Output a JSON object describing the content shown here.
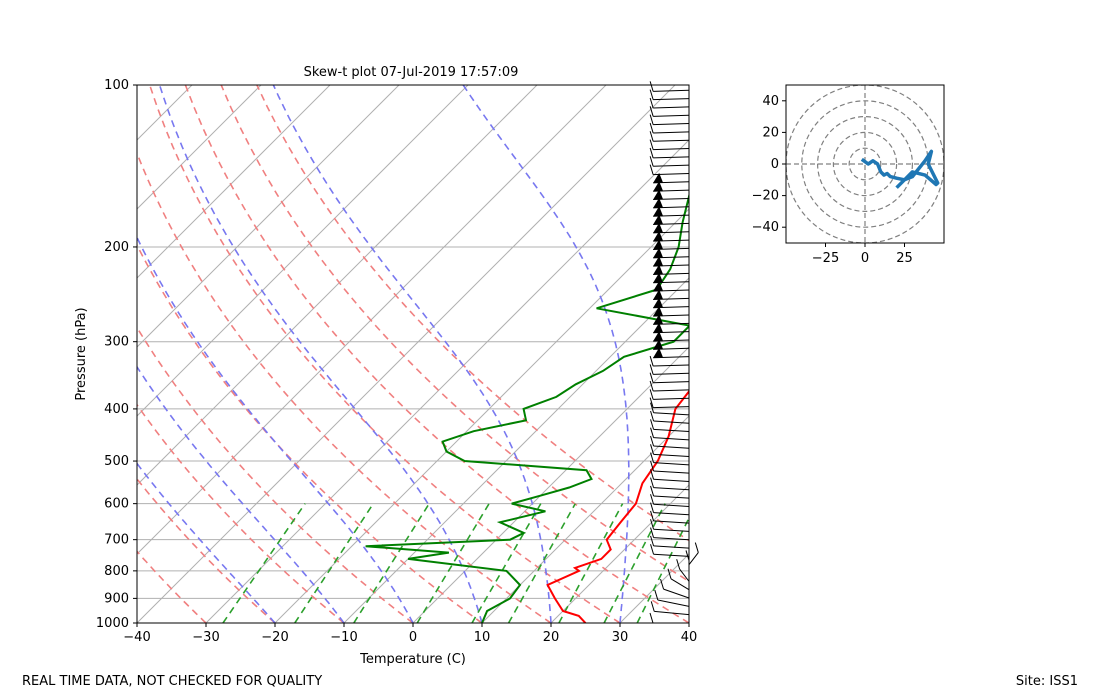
{
  "chart_data": [
    {
      "type": "skew-t",
      "title": "Skew-t plot 07-Jul-2019 17:57:09",
      "xlabel": "Temperature (C)",
      "ylabel": "Pressure (hPa)",
      "xlim": [
        -40,
        40
      ],
      "ylim": [
        1000,
        100
      ],
      "log_y": true,
      "grid": true,
      "x_ticks": [
        "−40",
        "−30",
        "−20",
        "−10",
        "0",
        "10",
        "20",
        "30",
        "40"
      ],
      "y_ticks": [
        "1000",
        "900",
        "800",
        "700",
        "600",
        "500",
        "400",
        "300",
        "200",
        "100"
      ],
      "series": [
        {
          "color": "#ff0000",
          "p": [
            1000,
            970,
            950,
            900,
            850,
            800,
            790,
            760,
            730,
            700,
            650,
            600,
            550,
            500,
            450,
            400,
            350,
            300,
            250,
            220,
            200,
            180,
            170,
            160,
            150,
            140,
            130,
            120,
            110,
            100
          ],
          "t": [
            25,
            23,
            20,
            17,
            14,
            16.5,
            15.5,
            18,
            18,
            16,
            15.5,
            15,
            13,
            12,
            10,
            7,
            6,
            2,
            0,
            -1,
            -1,
            2,
            4,
            6,
            9,
            12,
            15,
            18,
            19.5,
            20
          ]
        },
        {
          "color": "#008000",
          "p": [
            1000,
            950,
            900,
            850,
            800,
            760,
            740,
            720,
            700,
            680,
            650,
            620,
            600,
            580,
            560,
            540,
            520,
            500,
            480,
            460,
            440,
            420,
            400,
            380,
            360,
            340,
            320,
            300,
            280,
            260,
            240,
            220,
            200,
            180,
            160,
            140,
            120,
            110,
            100
          ],
          "t": [
            10,
            9,
            10.5,
            10,
            6,
            -10,
            -5,
            -18,
            2,
            3,
            -2,
            3,
            -3,
            0,
            3,
            5,
            3,
            -16,
            -20,
            -22,
            -19,
            -13,
            -15,
            -12,
            -11,
            -9,
            -8,
            -3,
            -3,
            -19,
            -13,
            -14,
            -16,
            -19,
            -22,
            -23,
            -22,
            -16,
            -13
          ]
        }
      ],
      "reference_lines": [
        "dry adiabats",
        "moist adiabats",
        "mixing ratio lines",
        "isotherms",
        "isobars"
      ],
      "wind_barbs": "right edge, staff to 100 hPa"
    },
    {
      "type": "hodograph",
      "xlim": [
        -50,
        50
      ],
      "ylim": [
        -50,
        50
      ],
      "x_ticks": [
        "−25",
        "0",
        "25"
      ],
      "y_ticks": [
        "40",
        "20",
        "0",
        "−20",
        "−40"
      ],
      "color": "#1f77b4",
      "u": [
        -2,
        2,
        5,
        8,
        10,
        12,
        14,
        16,
        20,
        25,
        30,
        38,
        42,
        40,
        46,
        45,
        38,
        30,
        25,
        20
      ],
      "v": [
        3,
        0,
        2,
        0,
        -5,
        -7,
        -6,
        -8,
        -9,
        -10,
        -8,
        2,
        8,
        0,
        -12,
        -13,
        -7,
        -5,
        -10,
        -15
      ]
    }
  ],
  "footer": {
    "left": "REAL TIME DATA, NOT CHECKED FOR QUALITY",
    "right": "Site: ISS1"
  }
}
